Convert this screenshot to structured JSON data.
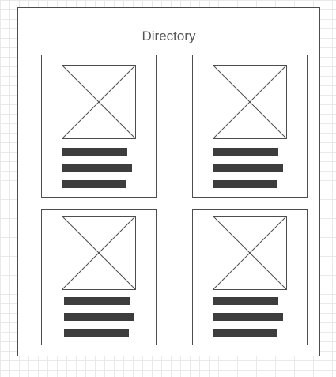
{
  "window": {
    "title": "Directory"
  },
  "cards": [
    {
      "name": "card-1",
      "image_icon": "image-placeholder-icon",
      "text_lines": 3
    },
    {
      "name": "card-2",
      "image_icon": "image-placeholder-icon",
      "text_lines": 3
    },
    {
      "name": "card-3",
      "image_icon": "image-placeholder-icon",
      "text_lines": 3
    },
    {
      "name": "card-4",
      "image_icon": "image-placeholder-icon",
      "text_lines": 3
    }
  ],
  "colors": {
    "border": "#4d4d4d",
    "text_bar": "#3d3d3d",
    "title": "#555555",
    "grid": "#e9e9e9"
  }
}
